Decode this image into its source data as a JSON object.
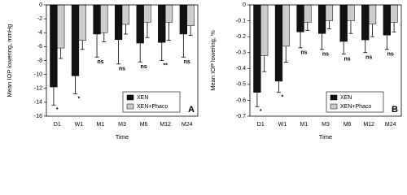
{
  "chart_data": [
    {
      "type": "bar",
      "panel_label": "A",
      "xlabel": "Time",
      "ylabel": "Mean IOP lowering, mmHg",
      "categories": [
        "D1",
        "W1",
        "M1",
        "M3",
        "M6",
        "M12",
        "M24"
      ],
      "series": [
        {
          "name": "XEN",
          "color": "#111111",
          "values": [
            -11.8,
            -10.2,
            -4.2,
            -5.0,
            -5.5,
            -5.4,
            -4.2
          ],
          "errors": [
            2.6,
            2.6,
            3.3,
            3.5,
            2.7,
            2.6,
            3.3
          ]
        },
        {
          "name": "XEN+Phaco",
          "color": "#cccccc",
          "values": [
            -6.2,
            -5.1,
            -4.0,
            -2.8,
            -2.5,
            -2.5,
            -3.0
          ],
          "errors": [
            1.5,
            1.3,
            1.3,
            1.4,
            2.2,
            2.6,
            1.4
          ]
        }
      ],
      "annotations": [
        "*",
        "*",
        "ns",
        "ns",
        "ns",
        "**",
        "ns"
      ],
      "ylim": [
        0,
        -16
      ],
      "yticks": [
        0,
        -2,
        -4,
        -6,
        -8,
        -10,
        -12,
        -14,
        -16
      ],
      "legend": "lower right"
    },
    {
      "type": "bar",
      "panel_label": "B",
      "xlabel": "Time",
      "ylabel": "Mean IOP lowering, %",
      "categories": [
        "D1",
        "W1",
        "M1",
        "M3",
        "M6",
        "M12",
        "M24"
      ],
      "series": [
        {
          "name": "XEN",
          "color": "#111111",
          "values": [
            -0.55,
            -0.48,
            -0.17,
            -0.18,
            -0.23,
            -0.22,
            -0.19
          ],
          "errors": [
            0.09,
            0.07,
            0.1,
            0.1,
            0.08,
            0.08,
            0.09
          ]
        },
        {
          "name": "XEN+Phaco",
          "color": "#cccccc",
          "values": [
            -0.32,
            -0.26,
            -0.11,
            -0.1,
            -0.1,
            -0.12,
            -0.11
          ],
          "errors": [
            0.1,
            0.1,
            0.05,
            0.05,
            0.08,
            0.08,
            0.06
          ]
        }
      ],
      "annotations": [
        "*",
        "*",
        "ns",
        "ns",
        "ns",
        "ns",
        "ns"
      ],
      "ylim": [
        0,
        -0.7
      ],
      "yticks": [
        0,
        -0.1,
        -0.2,
        -0.3,
        -0.4,
        -0.5,
        -0.6,
        -0.7
      ],
      "legend": "lower right"
    }
  ]
}
